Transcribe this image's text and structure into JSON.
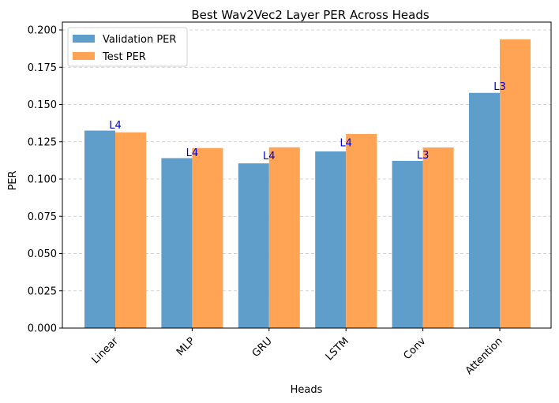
{
  "chart_data": {
    "type": "bar",
    "title": "Best Wav2Vec2 Layer PER Across Heads",
    "xlabel": "Heads",
    "ylabel": "PER",
    "ylim": [
      0,
      0.2
    ],
    "yticks": [
      "0.000",
      "0.025",
      "0.050",
      "0.075",
      "0.100",
      "0.125",
      "0.150",
      "0.175",
      "0.200"
    ],
    "grid": "y-dashed",
    "legend_position": "top-left",
    "categories": [
      "Linear",
      "MLP",
      "GRU",
      "LSTM",
      "Conv",
      "Attention"
    ],
    "series": [
      {
        "name": "Validation PER",
        "color": "#5f9ecb",
        "values": [
          0.1325,
          0.114,
          0.1105,
          0.1185,
          0.1122,
          0.1578
        ]
      },
      {
        "name": "Test PER",
        "color": "#ffa354",
        "values": [
          0.1313,
          0.1208,
          0.1213,
          0.1302,
          0.1212,
          0.1937
        ]
      }
    ],
    "annotations": [
      {
        "category": "Linear",
        "label": "L4",
        "y": 0.1365
      },
      {
        "category": "MLP",
        "label": "L4",
        "y": 0.118
      },
      {
        "category": "GRU",
        "label": "L4",
        "y": 0.116
      },
      {
        "category": "LSTM",
        "label": "L4",
        "y": 0.1245
      },
      {
        "category": "Conv",
        "label": "L3",
        "y": 0.1165
      },
      {
        "category": "Attention",
        "label": "L3",
        "y": 0.1625
      }
    ],
    "annotation_color": "#0000cc"
  }
}
